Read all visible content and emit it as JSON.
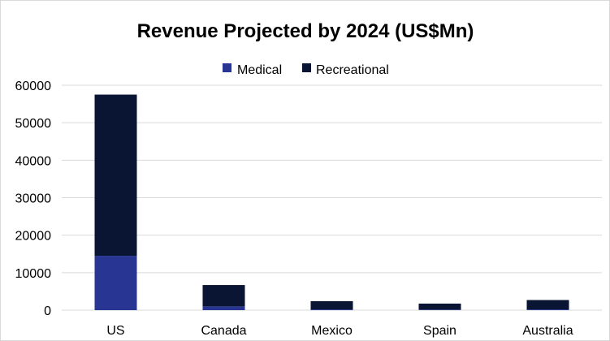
{
  "chart_data": {
    "type": "bar",
    "stacked": true,
    "title": "Revenue Projected by 2024 (US$Mn)",
    "xlabel": "",
    "ylabel": "",
    "categories": [
      "US",
      "Canada",
      "Mexico",
      "Spain",
      "Australia"
    ],
    "series": [
      {
        "name": "Medical",
        "color": "#283593",
        "values": [
          14500,
          1000,
          200,
          150,
          200
        ]
      },
      {
        "name": "Recreational",
        "color": "#0a1433",
        "values": [
          43000,
          5700,
          2200,
          1600,
          2500
        ]
      }
    ],
    "ylim": [
      0,
      60000
    ],
    "yticks": [
      "0",
      "10000",
      "20000",
      "30000",
      "40000",
      "50000",
      "60000"
    ],
    "grid": true,
    "legend_position": "top"
  }
}
